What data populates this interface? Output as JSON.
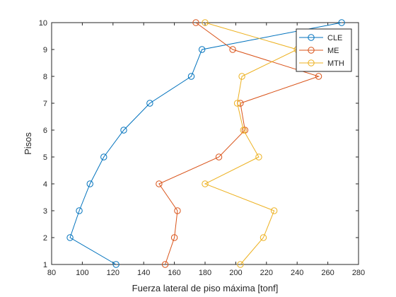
{
  "chart_data": {
    "type": "line",
    "xlabel": "Fuerza lateral de piso máxima [tonf]",
    "ylabel": "Pisos",
    "xlim": [
      80,
      280
    ],
    "ylim": [
      1,
      10
    ],
    "xticks": [
      80,
      100,
      120,
      140,
      160,
      180,
      200,
      220,
      240,
      260,
      280
    ],
    "yticks": [
      1,
      2,
      3,
      4,
      5,
      6,
      7,
      8,
      9,
      10
    ],
    "grid": false,
    "legend_position": "top-right",
    "marker": "circle",
    "y": [
      1,
      2,
      3,
      4,
      5,
      6,
      7,
      8,
      9,
      10
    ],
    "series": [
      {
        "name": "CLE",
        "color": "#0072BD",
        "x": [
          122,
          92,
          98,
          105,
          114,
          127,
          144,
          171,
          178,
          269
        ]
      },
      {
        "name": "ME",
        "color": "#D95319",
        "x": [
          154,
          160,
          162,
          150,
          189,
          206,
          203,
          254,
          198,
          174
        ]
      },
      {
        "name": "MTH",
        "color": "#EDB120",
        "x": [
          203,
          218,
          225,
          180,
          215,
          205,
          201,
          204,
          240,
          180
        ]
      }
    ]
  }
}
